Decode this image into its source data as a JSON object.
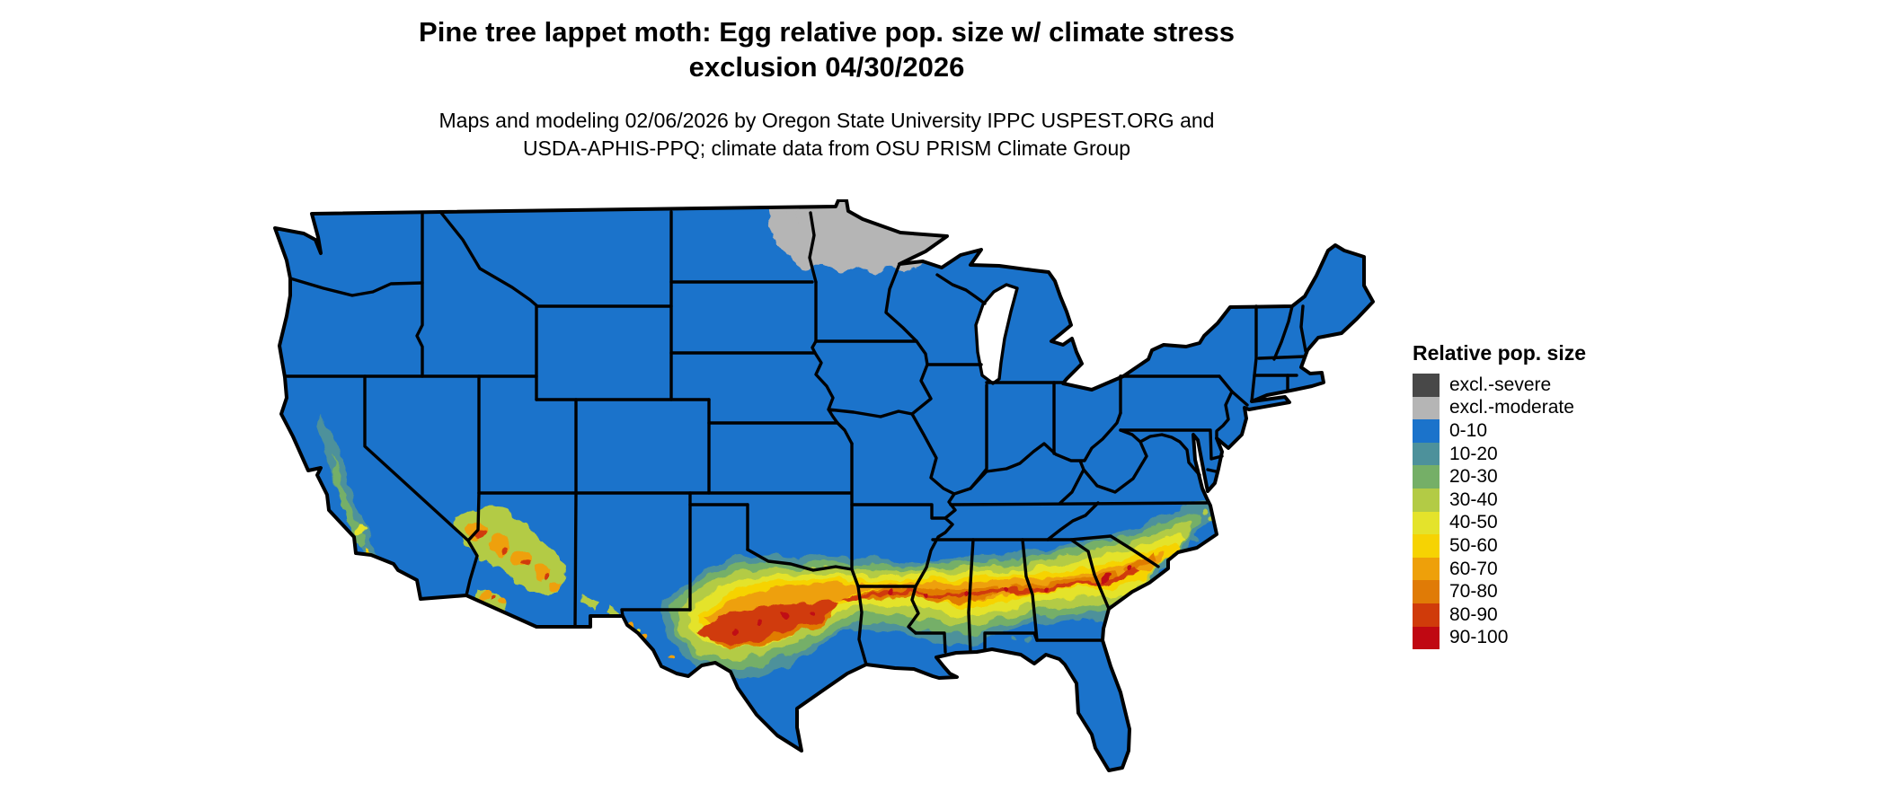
{
  "title": {
    "line1": "Pine tree lappet moth: Egg relative pop. size w/ climate stress",
    "line2": "exclusion 04/30/2026"
  },
  "subtitle": {
    "line1": "Maps and modeling 02/06/2026 by Oregon State University IPPC USPEST.ORG and",
    "line2": "USDA-APHIS-PPQ; climate data from OSU PRISM Climate Group"
  },
  "legend": {
    "title": "Relative pop. size",
    "items": [
      {
        "label": "excl.-severe",
        "color": "#484848"
      },
      {
        "label": "excl.-moderate",
        "color": "#B5B5B5"
      },
      {
        "label": "0-10",
        "color": "#1B73CB"
      },
      {
        "label": "10-20",
        "color": "#4D919B"
      },
      {
        "label": "20-30",
        "color": "#75AF67"
      },
      {
        "label": "30-40",
        "color": "#B3CB45"
      },
      {
        "label": "40-50",
        "color": "#E4E32B"
      },
      {
        "label": "50-60",
        "color": "#F6D303"
      },
      {
        "label": "60-70",
        "color": "#EEA00A"
      },
      {
        "label": "70-80",
        "color": "#E07B06"
      },
      {
        "label": "80-90",
        "color": "#D03B0A"
      },
      {
        "label": "90-100",
        "color": "#C00812"
      }
    ]
  },
  "map": {
    "type": "choropleth-raster",
    "projection": "conterminous United States with state borders",
    "background": "#FFFFFF",
    "state_border_color": "#000000",
    "base_category": "0-10",
    "regions": [
      {
        "name": "conus-base",
        "category": "0-10",
        "extent": "most of the United States"
      },
      {
        "name": "northern-minnesota",
        "category": "excl.-moderate",
        "extent": "northern Minnesota along the Canadian border and arrowhead"
      },
      {
        "name": "southern-band",
        "category": "40-100",
        "extent": "high relative population band from west/central Texas across northern Louisiana, central Mississippi, Alabama, Georgia into central South Carolina, fringed by 10-40 classes"
      },
      {
        "name": "california-foothills",
        "category": "10-60",
        "extent": "Sierra Nevada foothills and southern California coastal ranges"
      },
      {
        "name": "arizona-new-mexico",
        "category": "30-90",
        "extent": "Mogollon Rim and scattered highlands of Arizona and New Mexico"
      },
      {
        "name": "carolina-coast-fringe",
        "category": "10-40",
        "extent": "coastal plain of the Carolinas and Georgia"
      }
    ]
  }
}
